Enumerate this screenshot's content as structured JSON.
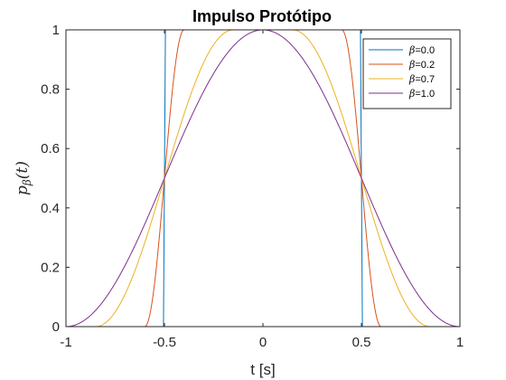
{
  "chart_data": {
    "type": "line",
    "title": "Impulso Protótipo",
    "xlabel": "t [s]",
    "ylabel": "p_β(t)",
    "ylabel_main": "p",
    "ylabel_sub": "β",
    "ylabel_arg": "(t)",
    "xlim": [
      -1,
      1
    ],
    "ylim": [
      0,
      1
    ],
    "xticks": [
      -1,
      -0.5,
      0,
      0.5,
      1
    ],
    "xtick_labels": [
      "-1",
      "-0.5",
      "0",
      "0.5",
      "1"
    ],
    "yticks": [
      0,
      0.2,
      0.4,
      0.6,
      0.8,
      1
    ],
    "ytick_labels": [
      "0",
      "0.2",
      "0.4",
      "0.6",
      "0.8",
      "1"
    ],
    "grid": false,
    "legend_position": "top-right",
    "legend_symbol": "β",
    "series": [
      {
        "name": "β=0.0",
        "beta_label": "=0.0",
        "beta": 0.0,
        "color": "#0072BD"
      },
      {
        "name": "β=0.2",
        "beta_label": "=0.2",
        "beta": 0.2,
        "color": "#D95319"
      },
      {
        "name": "β=0.7",
        "beta_label": "=0.7",
        "beta": 0.7,
        "color": "#EDB120"
      },
      {
        "name": "β=1.0",
        "beta_label": "=1.0",
        "beta": 1.0,
        "color": "#7E2F8E"
      }
    ]
  }
}
